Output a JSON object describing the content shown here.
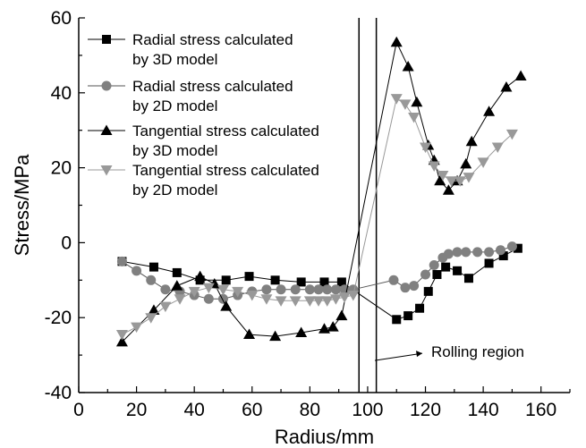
{
  "chart_data": {
    "type": "line",
    "xlabel": "Radius/mm",
    "ylabel": "Stress/MPa",
    "xlim": [
      0,
      170
    ],
    "ylim": [
      -40,
      60
    ],
    "xticks": [
      0,
      20,
      40,
      60,
      80,
      100,
      120,
      140,
      160
    ],
    "yticks": [
      -40,
      -20,
      0,
      20,
      40,
      60
    ],
    "grid": false,
    "legend_position": "top-left",
    "region_lines_x": [
      97,
      103
    ],
    "annotation": {
      "text": "Rolling region",
      "x": 98,
      "y": -30
    },
    "series": [
      {
        "name": "Radial stress calculated by 3D model",
        "legend_lines": [
          "Radial stress calculated",
          "by 3D model"
        ],
        "marker": "square",
        "color": "#000000",
        "line_color": "#000000",
        "points": [
          [
            15,
            -5
          ],
          [
            26,
            -6.5
          ],
          [
            34,
            -8
          ],
          [
            42,
            -10
          ],
          [
            51,
            -10
          ],
          [
            59,
            -9
          ],
          [
            68,
            -10
          ],
          [
            77,
            -10.5
          ],
          [
            85,
            -10.5
          ],
          [
            91,
            -10.5
          ],
          [
            110,
            -20.5
          ],
          [
            114,
            -19.5
          ],
          [
            118,
            -17.5
          ],
          [
            121,
            -13
          ],
          [
            124,
            -8.5
          ],
          [
            127,
            -6.5
          ],
          [
            131,
            -7.5
          ],
          [
            135,
            -9.5
          ],
          [
            142,
            -5.5
          ],
          [
            147,
            -3.5
          ],
          [
            152,
            -1.5
          ]
        ]
      },
      {
        "name": "Radial stress calculated by 2D model",
        "legend_lines": [
          "Radial stress calculated",
          "by 2D model"
        ],
        "marker": "circle",
        "color": "#808080",
        "line_color": "#555555",
        "points": [
          [
            15,
            -5
          ],
          [
            20,
            -7.5
          ],
          [
            25,
            -10
          ],
          [
            30,
            -12.5
          ],
          [
            35,
            -13
          ],
          [
            40,
            -14
          ],
          [
            45,
            -15
          ],
          [
            50,
            -15
          ],
          [
            55,
            -14
          ],
          [
            60,
            -13
          ],
          [
            65,
            -12.5
          ],
          [
            70,
            -12.5
          ],
          [
            75,
            -12.5
          ],
          [
            80,
            -12.5
          ],
          [
            83,
            -12.5
          ],
          [
            86,
            -12.5
          ],
          [
            89,
            -12.5
          ],
          [
            92,
            -12.5
          ],
          [
            95,
            -12.5
          ],
          [
            109,
            -10
          ],
          [
            113,
            -12
          ],
          [
            116,
            -11.5
          ],
          [
            120,
            -8.5
          ],
          [
            123,
            -6
          ],
          [
            126,
            -4
          ],
          [
            128,
            -3
          ],
          [
            131,
            -2.5
          ],
          [
            134,
            -2.5
          ],
          [
            138,
            -2.5
          ],
          [
            142,
            -2.5
          ],
          [
            146,
            -2
          ],
          [
            150,
            -1
          ]
        ]
      },
      {
        "name": "Tangential stress calculated by 3D model",
        "legend_lines": [
          "Tangential stress calculated",
          "by 3D model"
        ],
        "marker": "triangle-up",
        "color": "#000000",
        "line_color": "#000000",
        "points": [
          [
            15,
            -26.5
          ],
          [
            26,
            -18
          ],
          [
            34,
            -11.5
          ],
          [
            42,
            -9
          ],
          [
            47,
            -11
          ],
          [
            51,
            -17
          ],
          [
            59,
            -24.5
          ],
          [
            68,
            -25
          ],
          [
            77,
            -24
          ],
          [
            85,
            -23
          ],
          [
            88,
            -22.5
          ],
          [
            91,
            -19.5
          ],
          [
            110,
            53.5
          ],
          [
            114,
            47
          ],
          [
            117,
            37.5
          ],
          [
            121,
            26
          ],
          [
            123,
            22
          ],
          [
            125,
            16.5
          ],
          [
            128,
            14
          ],
          [
            131,
            16.5
          ],
          [
            134,
            21
          ],
          [
            136,
            27
          ],
          [
            142,
            35
          ],
          [
            148,
            41.5
          ],
          [
            153,
            44.5
          ]
        ]
      },
      {
        "name": "Tangential stress calculated by 2D model",
        "legend_lines": [
          "Tangential stress calculated",
          "by 2D model"
        ],
        "marker": "triangle-down",
        "color": "#999999",
        "line_color": "#999999",
        "points": [
          [
            15,
            -24.5
          ],
          [
            20,
            -22.5
          ],
          [
            25,
            -20
          ],
          [
            30,
            -17
          ],
          [
            35,
            -15
          ],
          [
            40,
            -13
          ],
          [
            45,
            -12
          ],
          [
            50,
            -12.5
          ],
          [
            55,
            -13
          ],
          [
            60,
            -14
          ],
          [
            65,
            -15
          ],
          [
            70,
            -15.5
          ],
          [
            75,
            -15.5
          ],
          [
            80,
            -15.5
          ],
          [
            83,
            -15.5
          ],
          [
            86,
            -15.5
          ],
          [
            89,
            -15
          ],
          [
            92,
            -14.5
          ],
          [
            95,
            -14
          ],
          [
            110,
            38.5
          ],
          [
            113,
            37
          ],
          [
            116,
            33.5
          ],
          [
            120,
            25.5
          ],
          [
            123,
            20.5
          ],
          [
            126,
            18
          ],
          [
            129,
            16.5
          ],
          [
            132,
            16.5
          ],
          [
            135,
            17.5
          ],
          [
            140,
            21.5
          ],
          [
            145,
            25.5
          ],
          [
            150,
            29
          ]
        ]
      }
    ]
  }
}
